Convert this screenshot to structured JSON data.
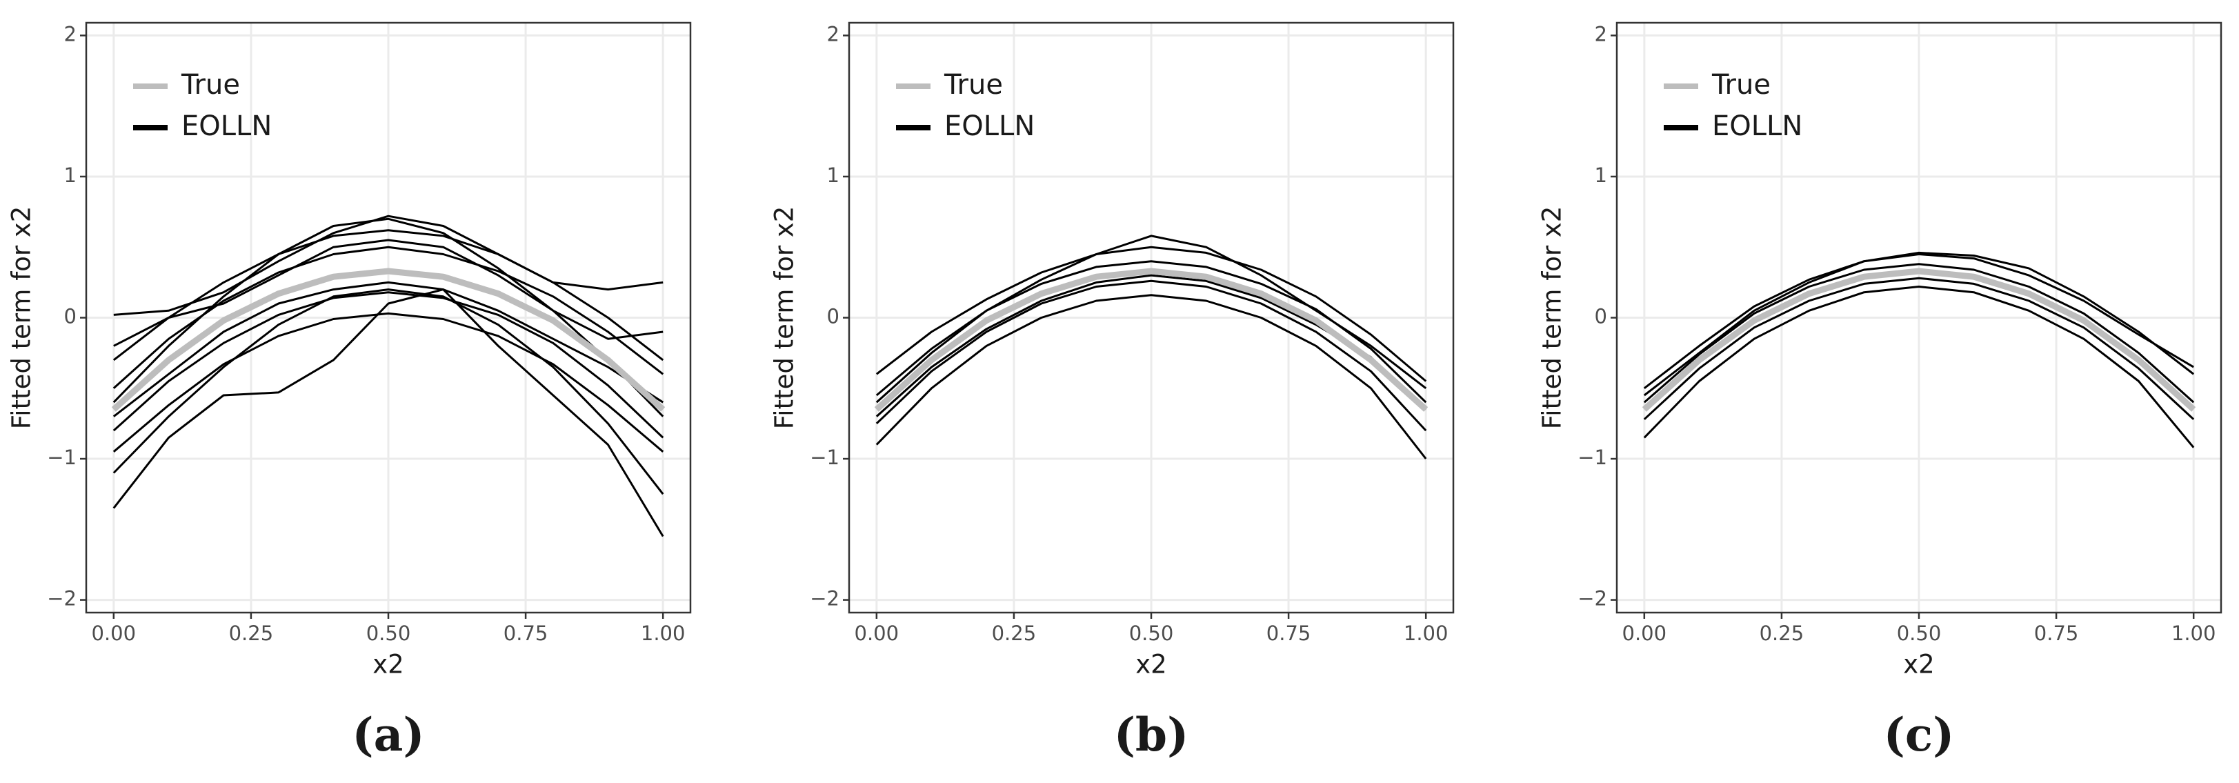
{
  "chart_data": [
    {
      "type": "line",
      "subcaption": "(a)",
      "xlabel": "x2",
      "ylabel": "Fitted term for x2",
      "x": [
        0,
        0.1,
        0.2,
        0.3,
        0.4,
        0.5,
        0.6,
        0.7,
        0.8,
        0.9,
        1
      ],
      "xlim": [
        -0.05,
        1.05
      ],
      "ylim": [
        -2.09,
        2.09
      ],
      "xticks": [
        {
          "value": 0,
          "label": "0.00"
        },
        0.25,
        {
          "value": 0.5,
          "label": "0.50"
        },
        0.75,
        {
          "value": 1,
          "label": "1.00"
        }
      ],
      "yticks": [
        {
          "value": -2,
          "label": "−2"
        },
        {
          "value": -1,
          "label": "−1"
        },
        0,
        1,
        2
      ],
      "grid": true,
      "legend": "top-left",
      "series": [
        {
          "name": "True",
          "color": "#bdbdbd",
          "values": [
            -0.65,
            -0.3,
            -0.02,
            0.17,
            0.29,
            0.33,
            0.29,
            0.17,
            -0.02,
            -0.3,
            -0.65
          ]
        },
        {
          "name": "EOLLN",
          "color": "#000000",
          "values": [
            -0.3,
            0.0,
            0.25,
            0.45,
            0.58,
            0.62,
            0.58,
            0.45,
            0.25,
            0.0,
            -0.3
          ]
        },
        {
          "color": "#000000",
          "values": [
            -0.95,
            -0.62,
            -0.33,
            -0.13,
            -0.01,
            0.03,
            -0.01,
            -0.13,
            -0.33,
            -0.62,
            -0.95
          ]
        },
        {
          "color": "#000000",
          "values": [
            -0.5,
            -0.15,
            0.12,
            0.32,
            0.45,
            0.5,
            0.45,
            0.33,
            0.15,
            -0.1,
            -0.4
          ]
        },
        {
          "color": "#000000",
          "values": [
            -0.8,
            -0.45,
            -0.18,
            0.02,
            0.14,
            0.18,
            0.14,
            0.02,
            -0.18,
            -0.48,
            -0.85
          ]
        },
        {
          "color": "#000000",
          "values": [
            -1.35,
            -0.85,
            -0.55,
            -0.53,
            -0.3,
            0.1,
            0.2,
            -0.2,
            -0.55,
            -0.9,
            -1.55
          ]
        },
        {
          "color": "#000000",
          "values": [
            0.02,
            0.05,
            0.18,
            0.4,
            0.6,
            0.72,
            0.65,
            0.45,
            0.25,
            0.2,
            0.25
          ]
        },
        {
          "color": "#000000",
          "values": [
            -0.6,
            -0.2,
            0.15,
            0.45,
            0.65,
            0.7,
            0.6,
            0.35,
            0.05,
            -0.3,
            -0.7
          ]
        },
        {
          "color": "#000000",
          "values": [
            -0.7,
            -0.4,
            -0.1,
            0.1,
            0.2,
            0.25,
            0.2,
            0.05,
            -0.15,
            -0.35,
            -0.6
          ]
        },
        {
          "color": "#000000",
          "values": [
            -1.1,
            -0.7,
            -0.35,
            -0.05,
            0.15,
            0.2,
            0.15,
            -0.05,
            -0.35,
            -0.75,
            -1.25
          ]
        },
        {
          "color": "#000000",
          "values": [
            -0.2,
            0.0,
            0.1,
            0.3,
            0.5,
            0.55,
            0.5,
            0.3,
            0.05,
            -0.15,
            -0.1
          ]
        }
      ]
    },
    {
      "type": "line",
      "subcaption": "(b)",
      "xlabel": "x2",
      "ylabel": "Fitted term for x2",
      "x": [
        0,
        0.1,
        0.2,
        0.3,
        0.4,
        0.5,
        0.6,
        0.7,
        0.8,
        0.9,
        1
      ],
      "xlim": [
        -0.05,
        1.05
      ],
      "ylim": [
        -2.09,
        2.09
      ],
      "xticks": [
        {
          "value": 0,
          "label": "0.00"
        },
        0.25,
        {
          "value": 0.5,
          "label": "0.50"
        },
        0.75,
        {
          "value": 1,
          "label": "1.00"
        }
      ],
      "yticks": [
        {
          "value": -2,
          "label": "−2"
        },
        {
          "value": -1,
          "label": "−1"
        },
        0,
        1,
        2
      ],
      "grid": true,
      "legend": "top-left",
      "series": [
        {
          "name": "True",
          "color": "#bdbdbd",
          "values": [
            -0.65,
            -0.3,
            -0.02,
            0.17,
            0.29,
            0.33,
            0.29,
            0.17,
            -0.02,
            -0.3,
            -0.65
          ]
        },
        {
          "name": "EOLLN",
          "color": "#000000",
          "values": [
            -0.4,
            -0.1,
            0.13,
            0.32,
            0.45,
            0.5,
            0.46,
            0.34,
            0.15,
            -0.12,
            -0.45
          ]
        },
        {
          "color": "#000000",
          "values": [
            -0.9,
            -0.5,
            -0.2,
            0.0,
            0.12,
            0.16,
            0.12,
            0.0,
            -0.2,
            -0.5,
            -1.0
          ]
        },
        {
          "color": "#000000",
          "values": [
            -0.55,
            -0.22,
            0.05,
            0.24,
            0.36,
            0.4,
            0.36,
            0.24,
            0.06,
            -0.22,
            -0.6
          ]
        },
        {
          "color": "#000000",
          "values": [
            -0.75,
            -0.38,
            -0.1,
            0.1,
            0.22,
            0.26,
            0.22,
            0.1,
            -0.1,
            -0.38,
            -0.8
          ]
        },
        {
          "color": "#000000",
          "values": [
            -0.6,
            -0.25,
            0.05,
            0.27,
            0.45,
            0.58,
            0.5,
            0.3,
            0.05,
            -0.2,
            -0.5
          ]
        },
        {
          "color": "#000000",
          "values": [
            -0.7,
            -0.35,
            -0.08,
            0.12,
            0.25,
            0.3,
            0.26,
            0.14,
            -0.05,
            -0.28,
            -0.65
          ]
        }
      ]
    },
    {
      "type": "line",
      "subcaption": "(c)",
      "xlabel": "x2",
      "ylabel": "Fitted term for x2",
      "x": [
        0,
        0.1,
        0.2,
        0.3,
        0.4,
        0.5,
        0.6,
        0.7,
        0.8,
        0.9,
        1
      ],
      "xlim": [
        -0.05,
        1.05
      ],
      "ylim": [
        -2.09,
        2.09
      ],
      "xticks": [
        {
          "value": 0,
          "label": "0.00"
        },
        0.25,
        {
          "value": 0.5,
          "label": "0.50"
        },
        0.75,
        {
          "value": 1,
          "label": "1.00"
        }
      ],
      "yticks": [
        {
          "value": -2,
          "label": "−2"
        },
        {
          "value": -1,
          "label": "−1"
        },
        0,
        1,
        2
      ],
      "grid": true,
      "legend": "top-left",
      "series": [
        {
          "name": "True",
          "color": "#bdbdbd",
          "values": [
            -0.65,
            -0.3,
            -0.02,
            0.17,
            0.29,
            0.33,
            0.29,
            0.17,
            -0.02,
            -0.3,
            -0.65
          ]
        },
        {
          "name": "EOLLN",
          "color": "#000000",
          "values": [
            -0.5,
            -0.2,
            0.08,
            0.27,
            0.4,
            0.45,
            0.42,
            0.3,
            0.12,
            -0.12,
            -0.35
          ]
        },
        {
          "color": "#000000",
          "values": [
            -0.85,
            -0.45,
            -0.15,
            0.05,
            0.18,
            0.22,
            0.18,
            0.05,
            -0.15,
            -0.45,
            -0.92
          ]
        },
        {
          "color": "#000000",
          "values": [
            -0.6,
            -0.26,
            0.03,
            0.22,
            0.34,
            0.38,
            0.34,
            0.22,
            0.03,
            -0.25,
            -0.6
          ]
        },
        {
          "color": "#000000",
          "values": [
            -0.72,
            -0.36,
            -0.07,
            0.12,
            0.24,
            0.28,
            0.24,
            0.12,
            -0.07,
            -0.36,
            -0.72
          ]
        },
        {
          "color": "#000000",
          "values": [
            -0.55,
            -0.25,
            0.05,
            0.25,
            0.4,
            0.46,
            0.44,
            0.35,
            0.15,
            -0.1,
            -0.4
          ]
        }
      ]
    }
  ]
}
